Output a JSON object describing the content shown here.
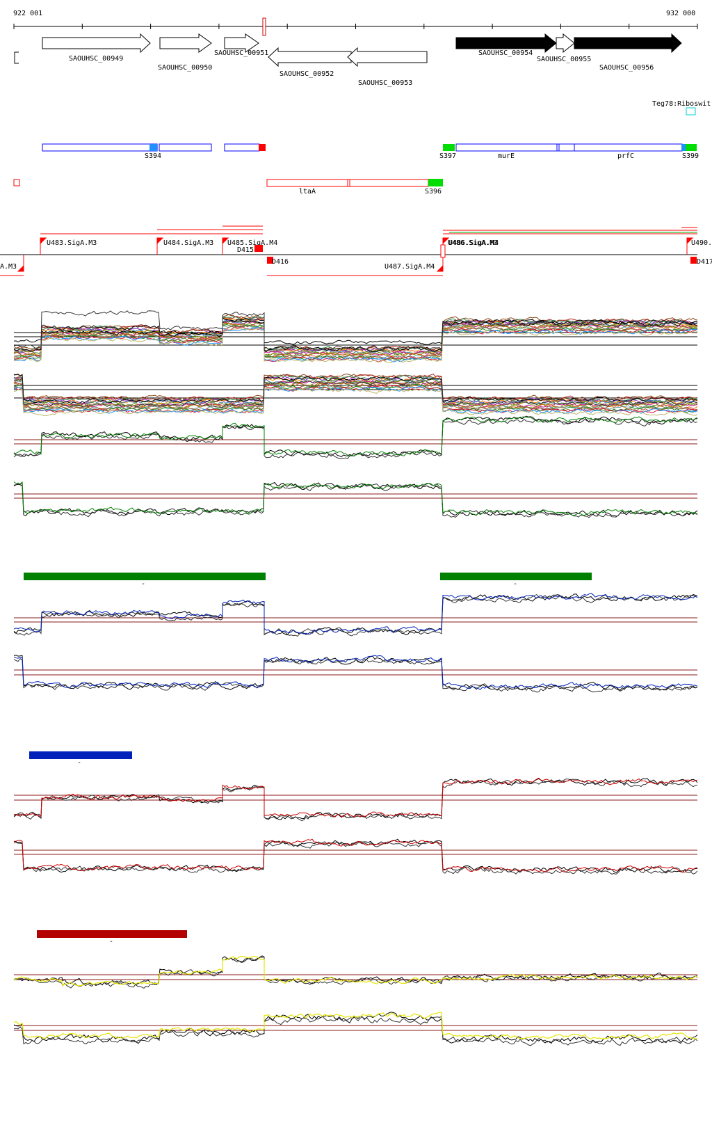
{
  "ruler": {
    "start_label": "922 001",
    "end_label": "932 000"
  },
  "genes": [
    {
      "label": "SAOUHSC_00949",
      "strand": "+",
      "filled": false
    },
    {
      "label": "SAOUHSC_00950",
      "strand": "+",
      "filled": false
    },
    {
      "label": "SAOUHSC_00951",
      "strand": "+",
      "filled": false
    },
    {
      "label": "SAOUHSC_00952",
      "strand": "-",
      "filled": false
    },
    {
      "label": "SAOUHSC_00953",
      "strand": "-",
      "filled": false
    },
    {
      "label": "SAOUHSC_00954",
      "strand": "+",
      "filled": true
    },
    {
      "label": "SAOUHSC_00955",
      "strand": "+",
      "filled": false
    },
    {
      "label": "SAOUHSC_00956",
      "strand": "+",
      "filled": true
    }
  ],
  "riboswitch": {
    "label": "Teg78:Riboswit"
  },
  "segments_plus": [
    {
      "label": "S394"
    },
    {
      "label": "S397"
    },
    {
      "label": "murE"
    },
    {
      "label": "prfC"
    },
    {
      "label": "S399"
    }
  ],
  "segments_minus": [
    {
      "label": "ltaA"
    },
    {
      "label": "S396"
    }
  ],
  "promoters_plus": [
    {
      "label": "U483.SigA.M3"
    },
    {
      "label": "U484.SigA.M3"
    },
    {
      "label": "U485.SigA.M4"
    },
    {
      "label": "U486.SigA.M3"
    },
    {
      "label": "U490."
    }
  ],
  "promoters_minus": [
    {
      "label": "A.M3"
    },
    {
      "label": "U487.SigA.M4"
    }
  ],
  "terminators": [
    {
      "label": "D415"
    },
    {
      "label": "D416"
    },
    {
      "label": "D417"
    }
  ],
  "legend_tick": "-",
  "colors": {
    "gene_outline": "#000000",
    "segment_plus": "#0000ff",
    "segment_minus": "#ff0000",
    "terminator": "#ff0000",
    "promoter": "#ff0000",
    "start_green": "#00cc00",
    "start_cyan": "#1e90ff",
    "green_track": "#008000",
    "blue_track": "#0022bb",
    "red_track": "#cc0000",
    "yellow_track": "#e6e600",
    "threshold": "#8b1a1a",
    "riboswitch_box": "#00ced1"
  }
}
